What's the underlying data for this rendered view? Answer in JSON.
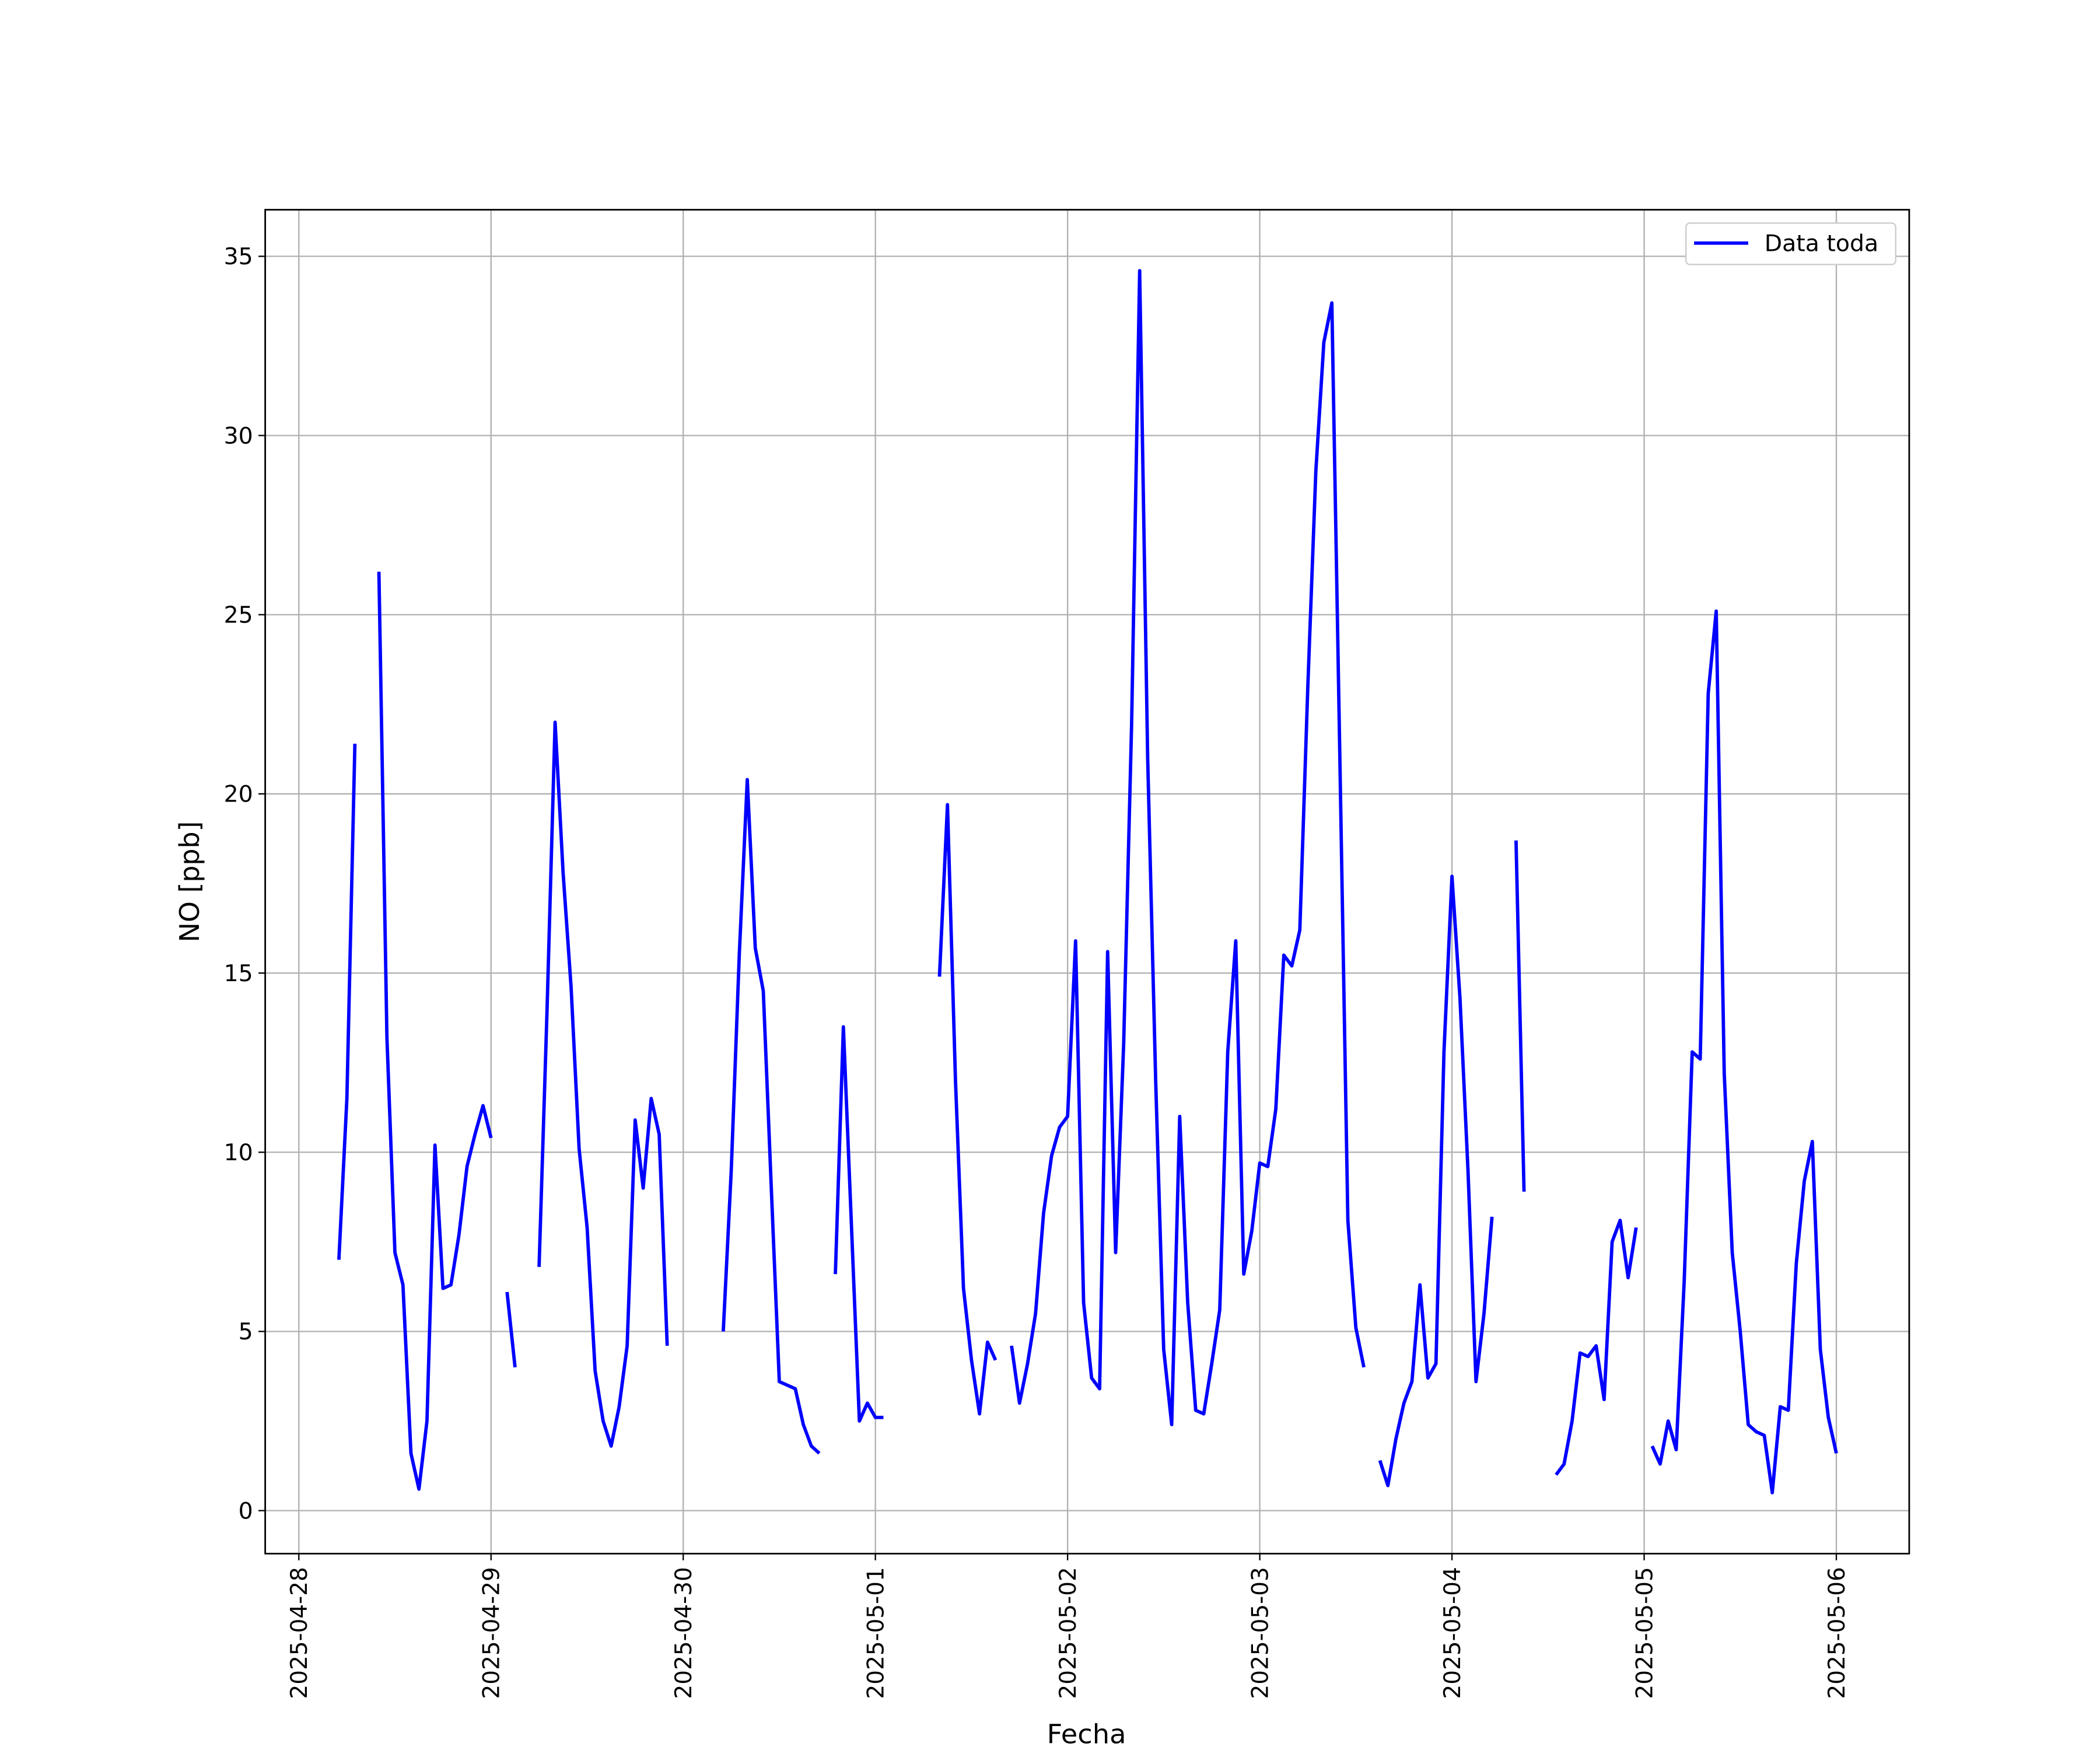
{
  "chart_data": {
    "type": "line",
    "xlabel": "Fecha",
    "ylabel": "NO [ppb]",
    "x": [
      "2025-04-28 05:00",
      "2025-04-28 06:00",
      "2025-04-28 07:00",
      "2025-04-28 08:00",
      "2025-04-28 10:00",
      "2025-04-28 11:00",
      "2025-04-28 12:00",
      "2025-04-28 13:00",
      "2025-04-28 14:00",
      "2025-04-28 15:00",
      "2025-04-28 16:00",
      "2025-04-28 17:00",
      "2025-04-28 18:00",
      "2025-04-28 19:00",
      "2025-04-28 20:00",
      "2025-04-28 21:00",
      "2025-04-28 22:00",
      "2025-04-28 23:00",
      "2025-04-29 00:00",
      "2025-04-29 01:00",
      "2025-04-29 02:00",
      "2025-04-29 03:00",
      "2025-04-29 04:00",
      "2025-04-29 06:00",
      "2025-04-29 07:00",
      "2025-04-29 08:00",
      "2025-04-29 09:00",
      "2025-04-29 10:00",
      "2025-04-29 11:00",
      "2025-04-29 12:00",
      "2025-04-29 13:00",
      "2025-04-29 14:00",
      "2025-04-29 15:00",
      "2025-04-29 16:00",
      "2025-04-29 17:00",
      "2025-04-29 18:00",
      "2025-04-29 19:00",
      "2025-04-29 20:00",
      "2025-04-29 21:00",
      "2025-04-29 22:00",
      "2025-04-29 23:00",
      "2025-04-30 05:00",
      "2025-04-30 06:00",
      "2025-04-30 07:00",
      "2025-04-30 08:00",
      "2025-04-30 09:00",
      "2025-04-30 10:00",
      "2025-04-30 11:00",
      "2025-04-30 12:00",
      "2025-04-30 13:00",
      "2025-04-30 14:00",
      "2025-04-30 15:00",
      "2025-04-30 16:00",
      "2025-04-30 17:00",
      "2025-04-30 18:00",
      "2025-04-30 19:00",
      "2025-04-30 20:00",
      "2025-04-30 21:00",
      "2025-04-30 22:00",
      "2025-04-30 23:00",
      "2025-05-01 00:00",
      "2025-05-01 01:00",
      "2025-05-01 02:00",
      "2025-05-01 08:00",
      "2025-05-01 09:00",
      "2025-05-01 10:00",
      "2025-05-01 11:00",
      "2025-05-01 12:00",
      "2025-05-01 13:00",
      "2025-05-01 14:00",
      "2025-05-01 15:00",
      "2025-05-01 16:00",
      "2025-05-01 17:00",
      "2025-05-01 18:00",
      "2025-05-01 19:00",
      "2025-05-01 20:00",
      "2025-05-01 21:00",
      "2025-05-01 22:00",
      "2025-05-01 23:00",
      "2025-05-02 00:00",
      "2025-05-02 01:00",
      "2025-05-02 02:00",
      "2025-05-02 03:00",
      "2025-05-02 04:00",
      "2025-05-02 05:00",
      "2025-05-02 06:00",
      "2025-05-02 07:00",
      "2025-05-02 08:00",
      "2025-05-02 09:00",
      "2025-05-02 10:00",
      "2025-05-02 11:00",
      "2025-05-02 12:00",
      "2025-05-02 13:00",
      "2025-05-02 14:00",
      "2025-05-02 15:00",
      "2025-05-02 16:00",
      "2025-05-02 17:00",
      "2025-05-02 18:00",
      "2025-05-02 19:00",
      "2025-05-02 20:00",
      "2025-05-02 21:00",
      "2025-05-02 22:00",
      "2025-05-02 23:00",
      "2025-05-03 00:00",
      "2025-05-03 01:00",
      "2025-05-03 02:00",
      "2025-05-03 03:00",
      "2025-05-03 04:00",
      "2025-05-03 05:00",
      "2025-05-03 06:00",
      "2025-05-03 07:00",
      "2025-05-03 08:00",
      "2025-05-03 09:00",
      "2025-05-03 10:00",
      "2025-05-03 11:00",
      "2025-05-03 12:00",
      "2025-05-03 13:00",
      "2025-05-03 14:00",
      "2025-05-03 15:00",
      "2025-05-03 16:00",
      "2025-05-03 17:00",
      "2025-05-03 18:00",
      "2025-05-03 19:00",
      "2025-05-03 20:00",
      "2025-05-03 21:00",
      "2025-05-03 22:00",
      "2025-05-03 23:00",
      "2025-05-04 00:00",
      "2025-05-04 01:00",
      "2025-05-04 02:00",
      "2025-05-04 03:00",
      "2025-05-04 04:00",
      "2025-05-04 05:00",
      "2025-05-04 06:00",
      "2025-05-04 08:00",
      "2025-05-04 09:00",
      "2025-05-04 10:00",
      "2025-05-04 13:00",
      "2025-05-04 14:00",
      "2025-05-04 15:00",
      "2025-05-04 16:00",
      "2025-05-04 17:00",
      "2025-05-04 18:00",
      "2025-05-04 19:00",
      "2025-05-04 20:00",
      "2025-05-04 21:00",
      "2025-05-04 22:00",
      "2025-05-04 23:00",
      "2025-05-05 00:00",
      "2025-05-05 01:00",
      "2025-05-05 02:00",
      "2025-05-05 03:00",
      "2025-05-05 04:00",
      "2025-05-05 05:00",
      "2025-05-05 06:00",
      "2025-05-05 07:00",
      "2025-05-05 08:00",
      "2025-05-05 09:00",
      "2025-05-05 10:00",
      "2025-05-05 11:00",
      "2025-05-05 12:00",
      "2025-05-05 13:00",
      "2025-05-05 14:00",
      "2025-05-05 15:00",
      "2025-05-05 16:00",
      "2025-05-05 17:00",
      "2025-05-05 18:00",
      "2025-05-05 19:00",
      "2025-05-05 20:00",
      "2025-05-05 21:00",
      "2025-05-05 22:00",
      "2025-05-05 23:00",
      "2025-05-06 00:00"
    ],
    "series": [
      {
        "name": "Data toda",
        "color": "#0000ff",
        "values": [
          7.0,
          11.5,
          21.4,
          null,
          26.2,
          13.2,
          7.2,
          6.3,
          1.6,
          0.6,
          2.5,
          10.2,
          6.2,
          6.3,
          7.7,
          9.6,
          10.5,
          11.3,
          10.4,
          null,
          6.1,
          4.0,
          null,
          6.8,
          14.0,
          22.0,
          17.8,
          14.6,
          10.1,
          7.9,
          3.9,
          2.5,
          1.8,
          2.9,
          4.6,
          10.9,
          9.0,
          11.5,
          10.5,
          4.6,
          null,
          5.0,
          9.5,
          15.5,
          20.4,
          15.7,
          14.5,
          9.0,
          3.6,
          3.5,
          3.4,
          2.4,
          1.8,
          1.6,
          null,
          6.6,
          13.5,
          8.0,
          2.5,
          3.0,
          2.6,
          2.6,
          null,
          14.9,
          19.7,
          12.0,
          6.2,
          4.2,
          2.7,
          4.7,
          4.2,
          null,
          4.6,
          3.0,
          4.1,
          5.5,
          8.3,
          9.9,
          10.7,
          11.0,
          15.9,
          5.8,
          3.7,
          3.4,
          15.6,
          7.2,
          13.0,
          22.0,
          34.6,
          21.0,
          12.0,
          4.5,
          2.4,
          11.0,
          5.8,
          2.8,
          2.7,
          4.1,
          5.6,
          12.8,
          15.9,
          6.6,
          7.8,
          9.7,
          9.6,
          11.2,
          15.5,
          15.2,
          16.2,
          23.0,
          29.0,
          32.6,
          33.7,
          21.0,
          8.1,
          5.1,
          4.0,
          null,
          1.4,
          0.7,
          2.0,
          3.0,
          3.6,
          6.3,
          3.7,
          4.1,
          12.8,
          17.7,
          14.3,
          9.5,
          3.6,
          5.5,
          8.2,
          null,
          18.7,
          8.9,
          null,
          1.0,
          1.3,
          2.5,
          4.4,
          4.3,
          4.6,
          3.1,
          7.5,
          8.1,
          6.5,
          7.9,
          null,
          1.8,
          1.3,
          2.5,
          1.7,
          6.4,
          12.8,
          12.6,
          22.8,
          25.1,
          12.2,
          7.2,
          5.0,
          2.4,
          2.2,
          2.1,
          0.5,
          2.9,
          2.8,
          6.9,
          9.2,
          10.3,
          4.5,
          2.6,
          1.6
        ]
      }
    ],
    "xlim": [
      "2025-04-27 19:48",
      "2025-05-06 09:06"
    ],
    "xticks": [
      "2025-04-28",
      "2025-04-29",
      "2025-04-30",
      "2025-05-01",
      "2025-05-02",
      "2025-05-03",
      "2025-05-04",
      "2025-05-05",
      "2025-05-06"
    ],
    "ylim": [
      -1.2,
      36.3
    ],
    "yticks": [
      0,
      5,
      10,
      15,
      20,
      25,
      30,
      35
    ],
    "grid": true,
    "legend": "upper right"
  }
}
